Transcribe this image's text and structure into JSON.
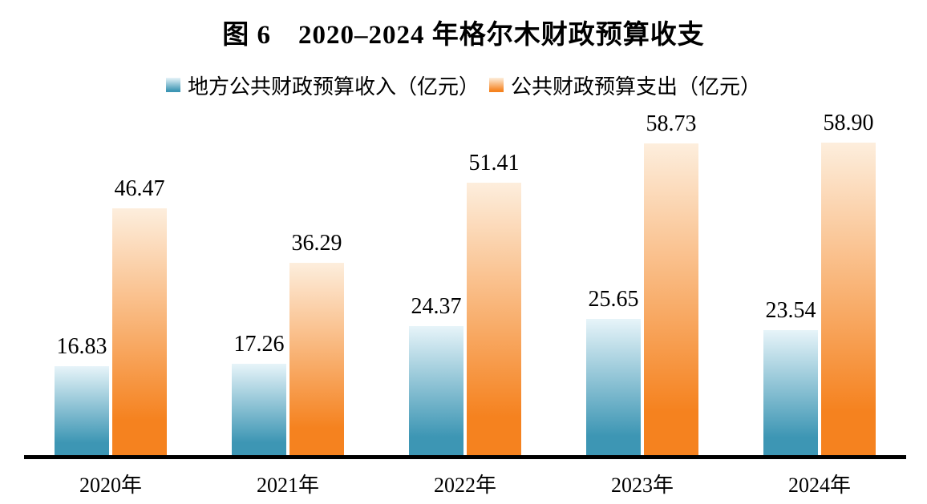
{
  "page": {
    "background": "#ffffff"
  },
  "chart_data": {
    "type": "bar",
    "title": "图 6　2020–2024 年格尔木财政预算收支",
    "categories": [
      "2020年",
      "2021年",
      "2022年",
      "2023年",
      "2024年"
    ],
    "series": [
      {
        "name": "地方公共财政预算收入（亿元）",
        "color": "#3d96b4",
        "color_light": "#e7f4f9",
        "values": [
          16.83,
          17.26,
          24.37,
          25.65,
          23.54
        ]
      },
      {
        "name": "公共财政预算支出（亿元）",
        "color": "#f5821f",
        "color_light": "#fdeedd",
        "values": [
          46.47,
          36.29,
          51.41,
          58.73,
          58.9
        ]
      }
    ],
    "xlabel": "",
    "ylabel": "",
    "ylim": [
      0,
      66
    ],
    "grid": false,
    "legend_position": "top",
    "value_labels": true,
    "value_label_decimals": 2,
    "axis_color": "#000000",
    "text_color": "#000000"
  }
}
